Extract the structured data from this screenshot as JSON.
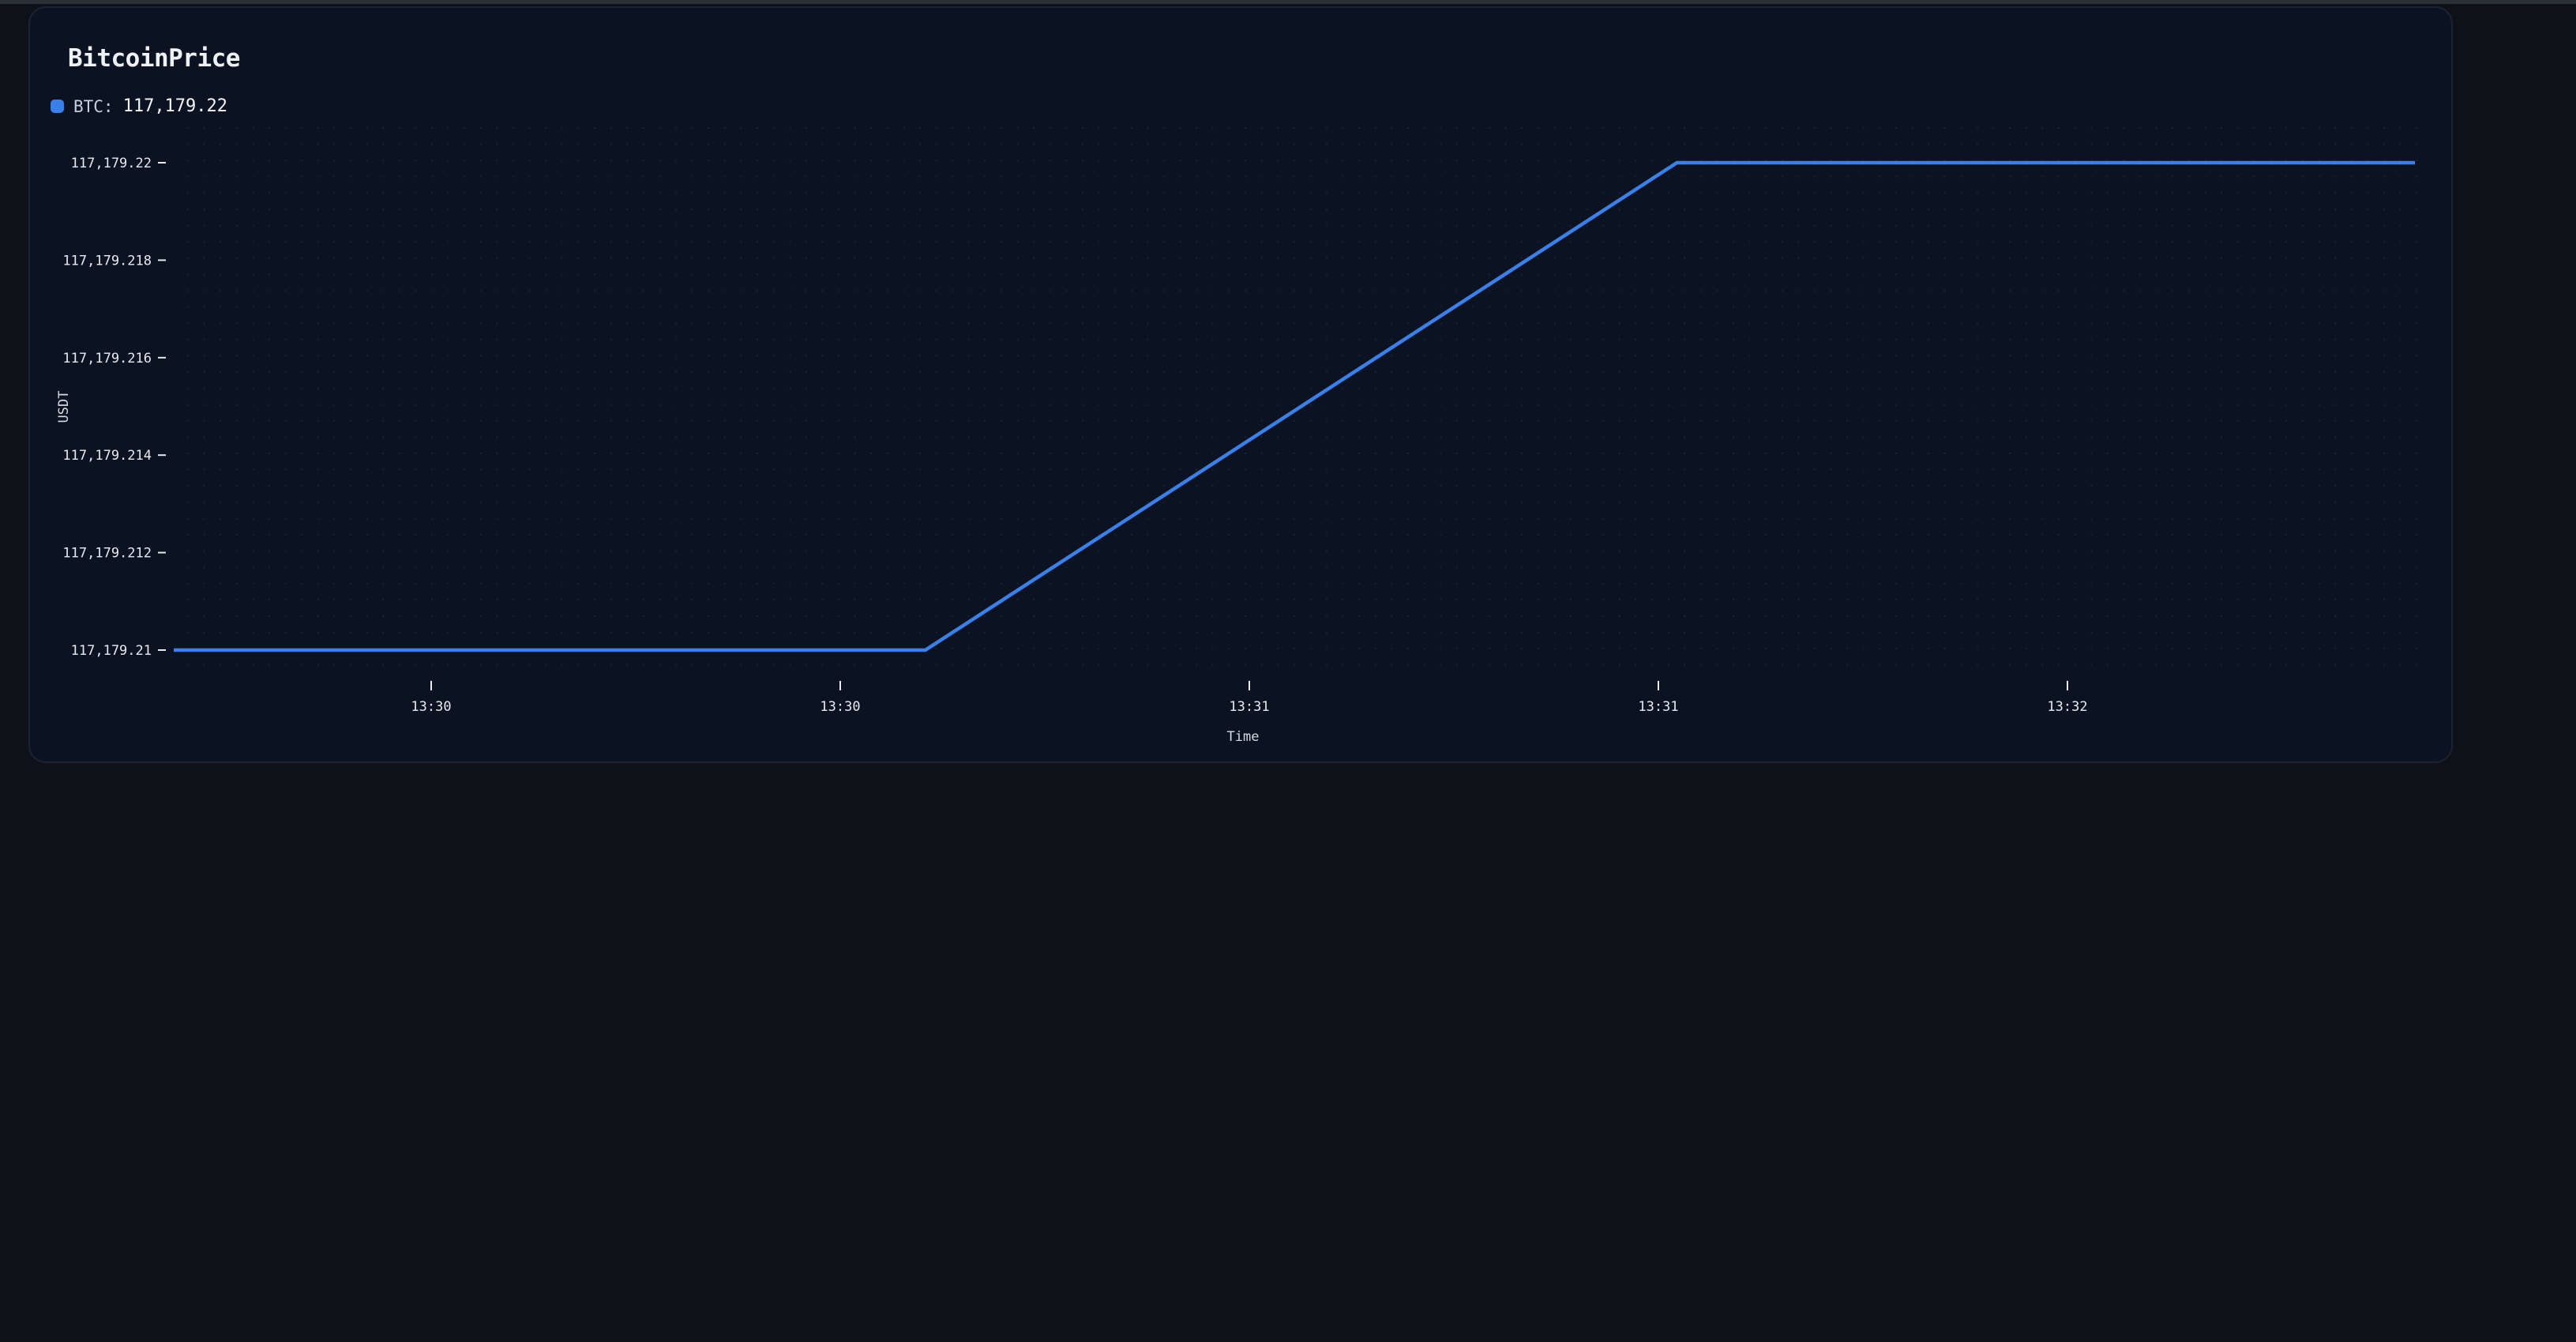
{
  "chart_data": {
    "type": "line",
    "title": "BitcoinPrice",
    "xlabel": "Time",
    "ylabel": "USDT",
    "x_ticks": [
      "13:30",
      "13:30",
      "13:31",
      "13:31",
      "13:32"
    ],
    "y_ticks": [
      "117,179.21",
      "117,179.212",
      "117,179.214",
      "117,179.216",
      "117,179.218",
      "117,179.22"
    ],
    "ylim": [
      117179.21,
      117179.22
    ],
    "grid": "dotted",
    "legend_position": "top-left",
    "series": [
      {
        "name": "BTC",
        "color": "#3b7fe8",
        "x": [
          "13:29:53",
          "13:30:48",
          "13:31:43",
          "13:32:37"
        ],
        "values": [
          117179.21,
          117179.21,
          117179.22,
          117179.22
        ]
      }
    ]
  },
  "legend": {
    "label": "BTC:",
    "value": "117,179.22"
  }
}
